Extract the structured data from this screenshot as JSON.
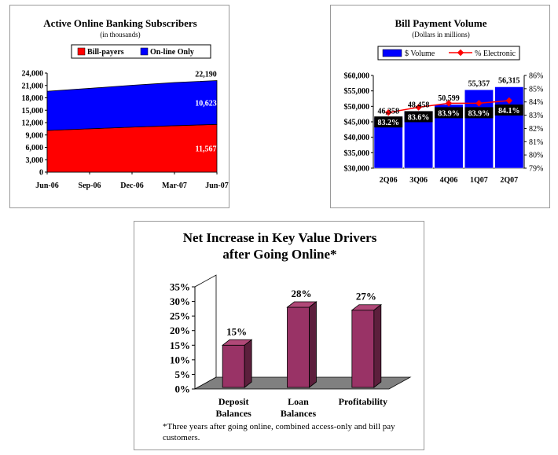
{
  "chart_data": [
    {
      "type": "area",
      "title": "Active Online Banking Subscribers",
      "subtitle": "(in thousands)",
      "x": [
        "Jun-06",
        "Sep-06",
        "Dec-06",
        "Mar-07",
        "Jun-07"
      ],
      "series": [
        {
          "name": "Bill-payers",
          "color": "#ff0000",
          "values": [
            10100,
            10500,
            10900,
            11250,
            11567
          ]
        },
        {
          "name": "On-line Only",
          "color": "#0000ff",
          "values": [
            9500,
            9800,
            10150,
            10450,
            10623
          ]
        }
      ],
      "total_label": "22,190",
      "data_labels": [
        "10,623",
        "11,567"
      ],
      "yticks": [
        "0",
        "3,000",
        "6,000",
        "9,000",
        "12,000",
        "15,000",
        "18,000",
        "21,000",
        "24,000"
      ],
      "ylim": [
        0,
        24000
      ]
    },
    {
      "type": "bar",
      "title": "Bill Payment Volume",
      "subtitle": "(Dollars in millions)",
      "categories": [
        "2Q06",
        "3Q06",
        "4Q06",
        "1Q07",
        "2Q07"
      ],
      "series": [
        {
          "name": "$ Volume",
          "color": "#0000ff",
          "values": [
            46358,
            48458,
            50599,
            55357,
            56315
          ]
        },
        {
          "name": "% Electronic",
          "color": "#ff0000",
          "axis": "right",
          "values": [
            83.2,
            83.6,
            83.9,
            83.9,
            84.1
          ]
        }
      ],
      "value_labels": [
        "46,358",
        "48,458",
        "50,599",
        "55,357",
        "56,315"
      ],
      "pct_labels": [
        "83.2%",
        "83.6%",
        "83.9%",
        "83.9%",
        "84.1%"
      ],
      "yticks_left": [
        "$30,000",
        "$35,000",
        "$40,000",
        "$45,000",
        "$50,000",
        "$55,000",
        "$60,000"
      ],
      "yticks_right": [
        "79%",
        "80%",
        "81%",
        "82%",
        "83%",
        "84%",
        "85%",
        "86%"
      ],
      "ylim_left": [
        30000,
        60000
      ],
      "ylim_right": [
        79,
        86
      ]
    },
    {
      "type": "bar",
      "title_line1": "Net Increase in Key Value Drivers",
      "title_line2": "after Going Online*",
      "categories": [
        [
          "Deposit",
          "Balances"
        ],
        [
          "Loan",
          "Balances"
        ],
        [
          "Profitability"
        ]
      ],
      "values": [
        15,
        28,
        27
      ],
      "value_labels": [
        "15%",
        "28%",
        "27%"
      ],
      "yticks": [
        "0%",
        "5%",
        "10%",
        "15%",
        "20%",
        "25%",
        "30%",
        "35%"
      ],
      "ylim": [
        0,
        35
      ],
      "footnote_line1": "*Three years after going online, combined access-only and bill pay",
      "footnote_line2": "customers.",
      "bar_color": "#993366"
    }
  ]
}
